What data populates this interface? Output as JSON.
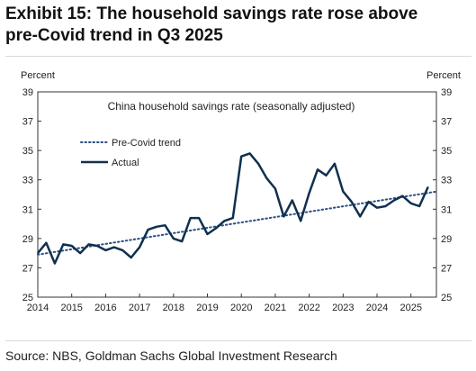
{
  "header": {
    "title_line1": "Exhibit 15: The household savings rate rose above",
    "title_line2": "pre-Covid trend in Q3 2025"
  },
  "source": "Source: NBS, Goldman Sachs Global Investment Research",
  "chart_data": {
    "type": "line",
    "title": "China household savings rate (seasonally adjusted)",
    "ylabel_left": "Percent",
    "ylabel_right": "Percent",
    "ylim": [
      25,
      39
    ],
    "yticks": [
      25,
      27,
      29,
      31,
      33,
      35,
      37,
      39
    ],
    "xlim": [
      2014,
      2025.75
    ],
    "xticks": [
      2014,
      2015,
      2016,
      2017,
      2018,
      2019,
      2020,
      2021,
      2022,
      2023,
      2024,
      2025
    ],
    "legend_position": "upper-left",
    "series": [
      {
        "name": "Pre-Covid trend",
        "style": "dotted",
        "color": "#2b4f86",
        "x": [
          2014.0,
          2025.75
        ],
        "y": [
          27.9,
          32.2
        ]
      },
      {
        "name": "Actual",
        "style": "solid",
        "color": "#10304f",
        "x": [
          2014.0,
          2014.25,
          2014.5,
          2014.75,
          2015.0,
          2015.25,
          2015.5,
          2015.75,
          2016.0,
          2016.25,
          2016.5,
          2016.75,
          2017.0,
          2017.25,
          2017.5,
          2017.75,
          2018.0,
          2018.25,
          2018.5,
          2018.75,
          2019.0,
          2019.25,
          2019.5,
          2019.75,
          2020.0,
          2020.25,
          2020.5,
          2020.75,
          2021.0,
          2021.25,
          2021.5,
          2021.75,
          2022.0,
          2022.25,
          2022.5,
          2022.75,
          2023.0,
          2023.25,
          2023.5,
          2023.75,
          2024.0,
          2024.25,
          2024.5,
          2024.75,
          2025.0,
          2025.25,
          2025.5
        ],
        "y": [
          28.0,
          28.7,
          27.3,
          28.6,
          28.5,
          28.0,
          28.6,
          28.5,
          28.2,
          28.4,
          28.2,
          27.7,
          28.4,
          29.6,
          29.8,
          29.9,
          29.0,
          28.8,
          30.4,
          30.4,
          29.3,
          29.7,
          30.2,
          30.4,
          34.6,
          34.8,
          34.1,
          33.1,
          32.4,
          30.5,
          31.6,
          30.2,
          32.1,
          33.7,
          33.3,
          34.1,
          32.2,
          31.5,
          30.5,
          31.5,
          31.1,
          31.2,
          31.6,
          31.9,
          31.4,
          31.2,
          32.5
        ]
      }
    ]
  }
}
